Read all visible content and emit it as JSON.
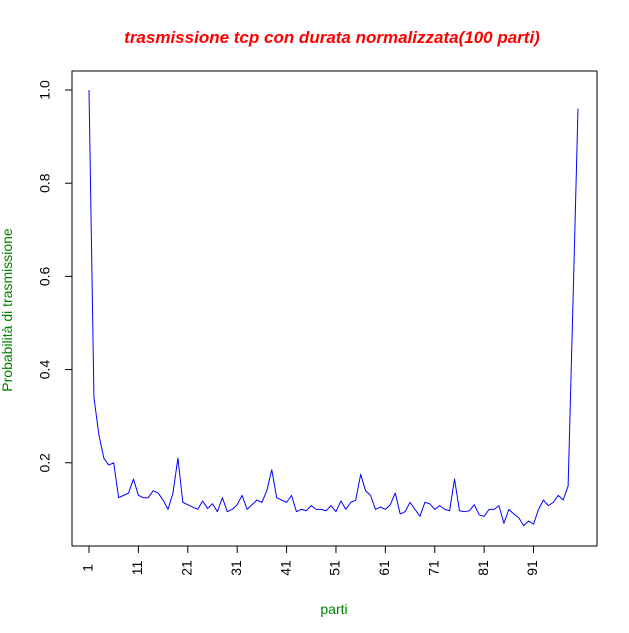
{
  "chart_data": {
    "type": "line",
    "title": "trasmissione tcp con durata normalizzata(100 parti)",
    "xlabel": "parti",
    "ylabel": "Probabilità di trasmissione",
    "xlim": [
      1,
      100
    ],
    "ylim": [
      0.06,
      1.0
    ],
    "x_ticks": [
      "1",
      "11",
      "21",
      "31",
      "41",
      "51",
      "61",
      "71",
      "81",
      "91"
    ],
    "y_ticks": [
      "0.2",
      "0.4",
      "0.6",
      "0.8",
      "1.0"
    ],
    "grid": false,
    "colors": {
      "title": "#ff0000",
      "axis_label": "#008000",
      "series": "#0000ff",
      "axis": "#000000"
    },
    "series": [
      {
        "values": [
          1.0,
          0.34,
          0.26,
          0.21,
          0.195,
          0.2,
          0.125,
          0.13,
          0.135,
          0.165,
          0.13,
          0.125,
          0.125,
          0.14,
          0.135,
          0.12,
          0.1,
          0.135,
          0.21,
          0.115,
          0.11,
          0.105,
          0.1,
          0.118,
          0.102,
          0.112,
          0.095,
          0.125,
          0.095,
          0.1,
          0.11,
          0.13,
          0.1,
          0.11,
          0.12,
          0.115,
          0.14,
          0.185,
          0.125,
          0.12,
          0.115,
          0.13,
          0.095,
          0.1,
          0.097,
          0.108,
          0.1,
          0.1,
          0.097,
          0.108,
          0.095,
          0.118,
          0.1,
          0.115,
          0.12,
          0.175,
          0.14,
          0.13,
          0.1,
          0.105,
          0.1,
          0.11,
          0.135,
          0.09,
          0.095,
          0.115,
          0.1,
          0.085,
          0.115,
          0.112,
          0.1,
          0.108,
          0.1,
          0.097,
          0.165,
          0.097,
          0.095,
          0.097,
          0.11,
          0.088,
          0.085,
          0.1,
          0.1,
          0.108,
          0.07,
          0.1,
          0.09,
          0.082,
          0.065,
          0.075,
          0.068,
          0.1,
          0.12,
          0.108,
          0.115,
          0.13,
          0.12,
          0.15,
          0.55,
          0.96
        ]
      }
    ]
  }
}
